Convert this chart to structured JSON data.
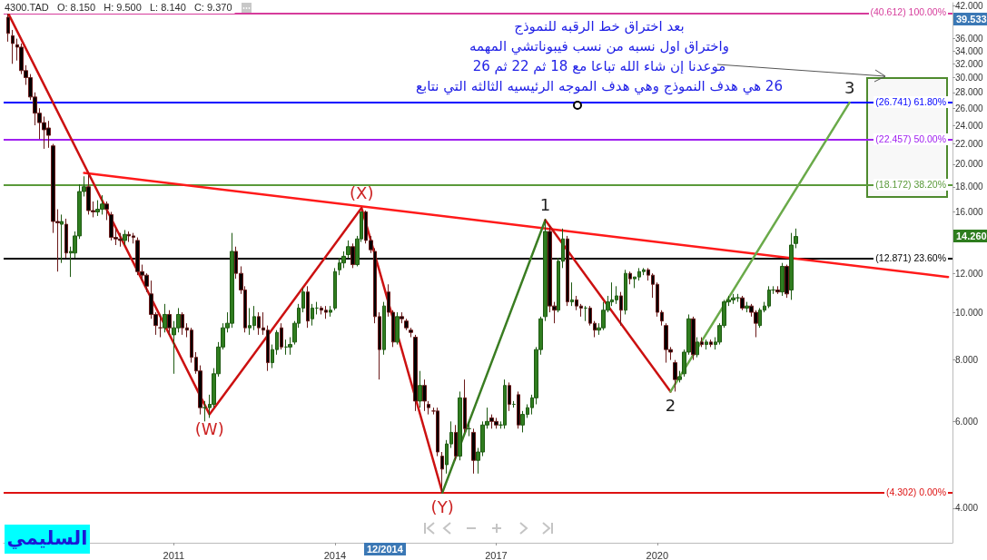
{
  "chart_data": {
    "type": "candlestick",
    "title": "4300.TAD   O: 8.150   H: 9.500   L: 8.140   C: 9.370",
    "x": [
      "2007-12",
      "2008-01",
      "2008-02",
      "2008-03",
      "2008-04",
      "2008-05",
      "2008-06",
      "2008-07",
      "2008-08",
      "2008-09",
      "2008-10",
      "2008-11",
      "2008-12",
      "2009-01",
      "2009-02",
      "2009-03",
      "2009-04",
      "2009-05",
      "2009-06",
      "2009-07",
      "2009-08",
      "2009-09",
      "2009-10",
      "2009-11",
      "2009-12",
      "2010-01",
      "2010-02",
      "2010-03",
      "2010-04",
      "2010-05",
      "2010-06",
      "2010-07",
      "2010-08",
      "2010-09",
      "2010-10",
      "2010-11",
      "2010-12",
      "2011-01",
      "2011-02",
      "2011-03",
      "2011-04",
      "2011-05",
      "2011-06",
      "2011-07",
      "2011-08",
      "2011-09",
      "2011-10",
      "2011-11",
      "2011-12",
      "2012-01",
      "2012-02",
      "2012-03",
      "2012-04",
      "2012-05",
      "2012-06",
      "2012-07",
      "2012-08",
      "2012-09",
      "2012-10",
      "2012-11",
      "2012-12",
      "2013-01",
      "2013-02",
      "2013-03",
      "2013-04",
      "2013-05",
      "2013-06",
      "2013-07",
      "2013-08",
      "2013-09",
      "2013-10",
      "2013-11",
      "2013-12",
      "2014-01",
      "2014-02",
      "2014-03",
      "2014-04",
      "2014-05",
      "2014-06",
      "2014-07",
      "2014-08",
      "2014-09",
      "2014-10",
      "2014-11",
      "2014-12",
      "2015-01",
      "2015-02",
      "2015-03",
      "2015-04",
      "2015-05",
      "2015-06",
      "2015-07",
      "2015-08",
      "2015-09",
      "2015-10",
      "2015-11",
      "2015-12",
      "2016-01",
      "2016-02",
      "2016-03",
      "2016-04",
      "2016-05",
      "2016-06",
      "2016-07",
      "2016-08",
      "2016-09",
      "2016-10",
      "2016-11",
      "2016-12",
      "2017-01",
      "2017-02",
      "2017-03",
      "2017-04",
      "2017-05",
      "2017-06",
      "2017-07",
      "2017-08",
      "2017-09",
      "2017-10",
      "2017-11",
      "2017-12",
      "2018-01",
      "2018-02",
      "2018-03",
      "2018-04",
      "2018-05",
      "2018-06",
      "2018-07",
      "2018-08",
      "2018-09",
      "2018-10",
      "2018-11",
      "2018-12",
      "2019-01",
      "2019-02",
      "2019-03",
      "2019-04",
      "2019-05",
      "2019-06",
      "2019-07",
      "2019-08",
      "2019-09",
      "2019-10",
      "2019-11",
      "2019-12",
      "2020-01",
      "2020-02",
      "2020-03",
      "2020-04",
      "2020-05",
      "2020-06",
      "2020-07",
      "2020-08",
      "2020-09",
      "2020-10",
      "2020-11",
      "2020-12",
      "2021-01",
      "2021-02",
      "2021-03",
      "2021-04",
      "2021-05",
      "2021-06",
      "2021-07",
      "2021-08",
      "2021-09",
      "2021-10",
      "2021-11",
      "2021-12",
      "2022-01",
      "2022-02",
      "2022-03",
      "2022-04",
      "2022-05",
      "2022-06",
      "2022-07",
      "2022-08"
    ],
    "ohlc": [
      [
        39.8,
        40.6,
        35.5,
        36.9
      ],
      [
        36.5,
        37.5,
        32.0,
        35.2
      ],
      [
        35.0,
        36.0,
        32.5,
        34.6
      ],
      [
        34.6,
        35.2,
        30.5,
        31.0
      ],
      [
        31.0,
        31.8,
        29.0,
        30.0
      ],
      [
        30.0,
        30.5,
        27.0,
        27.4
      ],
      [
        27.4,
        28.0,
        24.0,
        25.4
      ],
      [
        25.4,
        26.0,
        22.5,
        24.3
      ],
      [
        24.3,
        25.0,
        21.5,
        23.5
      ],
      [
        23.7,
        24.5,
        21.6,
        22.9
      ],
      [
        21.8,
        22.0,
        14.5,
        15.3
      ],
      [
        15.3,
        16.2,
        12.1,
        15.2
      ],
      [
        15.1,
        15.8,
        12.6,
        15.3
      ],
      [
        15.1,
        15.5,
        12.9,
        13.2
      ],
      [
        13.2,
        13.6,
        11.8,
        13.3
      ],
      [
        13.2,
        14.6,
        12.9,
        14.3
      ],
      [
        14.3,
        18.2,
        14.1,
        17.6
      ],
      [
        17.6,
        18.9,
        17.2,
        18.0
      ],
      [
        18.0,
        19.0,
        15.8,
        16.1
      ],
      [
        16.1,
        16.8,
        15.6,
        16.0
      ],
      [
        16.0,
        16.9,
        15.7,
        16.2
      ],
      [
        16.2,
        17.3,
        15.8,
        16.6
      ],
      [
        16.6,
        16.8,
        15.4,
        16.2
      ],
      [
        15.8,
        16.0,
        14.0,
        14.2
      ],
      [
        14.2,
        14.8,
        13.7,
        14.1
      ],
      [
        14.1,
        14.5,
        13.6,
        14.0
      ],
      [
        14.0,
        14.7,
        13.7,
        14.4
      ],
      [
        14.4,
        14.6,
        13.9,
        14.3
      ],
      [
        14.3,
        14.5,
        13.8,
        14.2
      ],
      [
        14.0,
        14.2,
        11.9,
        12.1
      ],
      [
        12.1,
        12.5,
        11.6,
        11.9
      ],
      [
        11.9,
        12.0,
        11.0,
        11.3
      ],
      [
        10.9,
        11.6,
        9.7,
        9.9
      ],
      [
        9.9,
        10.0,
        9.0,
        9.4
      ],
      [
        9.3,
        9.9,
        8.9,
        9.3
      ],
      [
        9.3,
        10.4,
        9.1,
        9.9
      ],
      [
        9.9,
        10.1,
        9.0,
        9.3
      ],
      [
        9.0,
        9.6,
        7.5,
        9.3
      ],
      [
        9.3,
        10.2,
        9.1,
        9.9
      ],
      [
        9.9,
        10.0,
        9.0,
        9.3
      ],
      [
        9.3,
        9.5,
        8.9,
        9.2
      ],
      [
        9.2,
        9.3,
        7.9,
        8.1
      ],
      [
        8.1,
        8.3,
        7.5,
        7.6
      ],
      [
        7.6,
        7.8,
        6.2,
        6.4
      ],
      [
        6.4,
        6.6,
        6.0,
        6.4
      ],
      [
        6.4,
        6.8,
        6.1,
        6.5
      ],
      [
        6.5,
        7.7,
        6.4,
        7.5
      ],
      [
        7.5,
        8.7,
        7.4,
        8.5
      ],
      [
        8.5,
        9.5,
        8.4,
        9.3
      ],
      [
        9.3,
        10.0,
        9.1,
        9.5
      ],
      [
        9.5,
        14.5,
        9.3,
        13.3
      ],
      [
        13.3,
        13.6,
        11.7,
        12.0
      ],
      [
        12.0,
        12.4,
        10.9,
        11.1
      ],
      [
        11.1,
        11.3,
        9.1,
        9.3
      ],
      [
        9.3,
        10.2,
        9.0,
        9.4
      ],
      [
        9.4,
        10.3,
        9.2,
        9.8
      ],
      [
        9.8,
        10.0,
        9.0,
        9.3
      ],
      [
        9.3,
        10.0,
        9.0,
        9.2
      ],
      [
        9.2,
        9.4,
        7.6,
        7.9
      ],
      [
        7.9,
        8.6,
        7.7,
        8.4
      ],
      [
        8.4,
        9.2,
        8.2,
        9.1
      ],
      [
        9.3,
        9.5,
        8.4,
        8.5
      ],
      [
        8.5,
        8.8,
        8.2,
        8.5
      ],
      [
        8.5,
        8.9,
        8.2,
        8.6
      ],
      [
        8.7,
        9.6,
        8.6,
        9.5
      ],
      [
        9.5,
        10.4,
        9.3,
        10.2
      ],
      [
        10.2,
        11.2,
        10.0,
        11.0
      ],
      [
        11.0,
        11.3,
        9.3,
        9.6
      ],
      [
        9.7,
        10.4,
        9.4,
        10.2
      ],
      [
        10.2,
        10.5,
        9.9,
        10.2
      ],
      [
        10.2,
        10.3,
        9.9,
        10.1
      ],
      [
        10.1,
        10.3,
        9.7,
        10.0
      ],
      [
        10.0,
        10.3,
        9.8,
        10.1
      ],
      [
        10.2,
        12.3,
        10.1,
        12.1
      ],
      [
        12.2,
        12.9,
        11.9,
        12.6
      ],
      [
        12.6,
        13.3,
        12.3,
        13.0
      ],
      [
        13.1,
        14.0,
        12.9,
        13.6
      ],
      [
        13.6,
        13.8,
        12.3,
        12.5
      ],
      [
        12.5,
        14.3,
        12.4,
        14.1
      ],
      [
        14.1,
        16.0,
        13.9,
        16.0
      ],
      [
        16.0,
        16.1,
        13.8,
        14.0
      ],
      [
        14.0,
        14.3,
        13.2,
        13.4
      ],
      [
        13.3,
        13.5,
        9.5,
        9.8
      ],
      [
        9.8,
        10.0,
        7.3,
        8.4
      ],
      [
        8.4,
        10.5,
        8.2,
        10.3
      ],
      [
        11.0,
        11.4,
        9.8,
        10.0
      ],
      [
        10.0,
        10.1,
        8.5,
        8.7
      ],
      [
        8.7,
        10.0,
        8.6,
        9.8
      ],
      [
        9.8,
        10.0,
        9.5,
        9.7
      ],
      [
        9.6,
        9.7,
        9.2,
        9.3
      ],
      [
        9.2,
        9.3,
        8.9,
        9.1
      ],
      [
        8.9,
        9.0,
        6.3,
        6.6
      ],
      [
        6.6,
        7.6,
        6.4,
        7.1
      ],
      [
        7.1,
        7.3,
        6.3,
        6.6
      ],
      [
        6.5,
        6.6,
        6.2,
        6.4
      ],
      [
        6.3,
        6.4,
        6.2,
        6.3
      ],
      [
        6.3,
        6.4,
        5.1,
        5.2
      ],
      [
        5.1,
        5.2,
        4.3,
        4.8
      ],
      [
        4.9,
        5.5,
        4.7,
        5.4
      ],
      [
        5.4,
        6.0,
        5.3,
        5.7
      ],
      [
        5.7,
        5.9,
        5.0,
        5.1
      ],
      [
        5.1,
        6.9,
        5.0,
        6.7
      ],
      [
        6.7,
        7.3,
        5.7,
        5.8
      ],
      [
        5.8,
        6.0,
        5.6,
        5.8
      ],
      [
        5.7,
        5.8,
        4.7,
        5.0
      ],
      [
        5.0,
        5.3,
        4.7,
        5.2
      ],
      [
        5.2,
        6.0,
        5.1,
        5.9
      ],
      [
        5.9,
        6.4,
        5.8,
        6.0
      ],
      [
        6.1,
        6.2,
        5.8,
        6.0
      ],
      [
        6.0,
        6.1,
        5.8,
        5.9
      ],
      [
        5.9,
        6.0,
        5.8,
        5.9
      ],
      [
        5.9,
        7.3,
        5.8,
        7.1
      ],
      [
        7.1,
        7.2,
        6.3,
        6.5
      ],
      [
        6.5,
        6.6,
        6.4,
        6.5
      ],
      [
        6.8,
        6.9,
        5.8,
        5.9
      ],
      [
        5.9,
        6.3,
        5.7,
        6.2
      ],
      [
        6.2,
        6.5,
        6.1,
        6.4
      ],
      [
        6.4,
        6.8,
        6.2,
        6.7
      ],
      [
        6.7,
        8.5,
        6.5,
        8.4
      ],
      [
        8.4,
        9.8,
        8.2,
        9.7
      ],
      [
        9.8,
        15.5,
        9.6,
        14.6
      ],
      [
        14.6,
        15.0,
        10.0,
        10.3
      ],
      [
        10.3,
        10.5,
        9.5,
        10.1
      ],
      [
        10.1,
        12.9,
        10.0,
        12.7
      ],
      [
        12.7,
        14.8,
        12.3,
        14.1
      ],
      [
        14.1,
        14.3,
        10.3,
        10.5
      ],
      [
        10.5,
        11.5,
        10.3,
        10.6
      ],
      [
        10.6,
        10.8,
        10.1,
        10.3
      ],
      [
        10.3,
        10.4,
        9.8,
        10.2
      ],
      [
        10.2,
        10.3,
        9.6,
        10.2
      ],
      [
        10.2,
        10.3,
        9.4,
        9.5
      ],
      [
        9.5,
        9.6,
        8.9,
        9.2
      ],
      [
        9.2,
        9.5,
        9.0,
        9.3
      ],
      [
        9.3,
        10.5,
        9.2,
        10.1
      ],
      [
        10.1,
        10.8,
        10.0,
        10.5
      ],
      [
        10.5,
        11.5,
        10.3,
        10.6
      ],
      [
        10.6,
        11.3,
        10.4,
        10.8
      ],
      [
        10.8,
        11.0,
        9.4,
        10.1
      ],
      [
        10.1,
        12.2,
        9.9,
        12.0
      ],
      [
        12.0,
        12.1,
        11.4,
        11.7
      ],
      [
        11.7,
        11.8,
        11.2,
        11.8
      ],
      [
        11.8,
        12.3,
        11.6,
        12.1
      ],
      [
        12.1,
        12.3,
        11.9,
        12.2
      ],
      [
        12.2,
        12.3,
        11.6,
        11.9
      ],
      [
        11.9,
        12.0,
        10.7,
        11.4
      ],
      [
        11.4,
        11.5,
        9.8,
        10.0
      ],
      [
        10.0,
        10.1,
        9.4,
        9.6
      ],
      [
        9.4,
        9.5,
        7.9,
        8.4
      ],
      [
        8.4,
        8.5,
        8.0,
        8.3
      ],
      [
        7.9,
        8.0,
        6.9,
        7.3
      ],
      [
        7.3,
        7.6,
        7.2,
        7.4
      ],
      [
        7.5,
        8.4,
        7.4,
        8.3
      ],
      [
        8.3,
        9.9,
        8.2,
        9.7
      ],
      [
        9.7,
        9.8,
        8.0,
        8.2
      ],
      [
        8.2,
        8.9,
        8.1,
        8.7
      ],
      [
        8.7,
        8.9,
        8.5,
        8.6
      ],
      [
        8.6,
        8.8,
        8.4,
        8.7
      ],
      [
        8.7,
        8.8,
        8.5,
        8.6
      ],
      [
        8.6,
        8.9,
        8.4,
        8.7
      ],
      [
        8.7,
        9.5,
        8.6,
        9.4
      ],
      [
        9.4,
        10.6,
        9.3,
        10.5
      ],
      [
        10.5,
        10.8,
        10.3,
        10.6
      ],
      [
        10.6,
        10.9,
        10.4,
        10.7
      ],
      [
        10.7,
        10.9,
        10.5,
        10.7
      ],
      [
        10.7,
        10.8,
        10.1,
        10.2
      ],
      [
        10.2,
        10.5,
        10.0,
        10.3
      ],
      [
        10.3,
        10.4,
        9.8,
        10.0
      ],
      [
        10.0,
        10.1,
        8.9,
        9.5
      ],
      [
        9.4,
        10.2,
        9.3,
        10.1
      ],
      [
        10.1,
        10.5,
        10.0,
        10.3
      ],
      [
        10.3,
        11.3,
        10.2,
        11.1
      ],
      [
        11.1,
        11.3,
        10.9,
        11.1
      ],
      [
        11.1,
        11.3,
        10.9,
        11.0
      ],
      [
        11.0,
        12.6,
        10.8,
        12.4
      ],
      [
        12.4,
        12.5,
        10.7,
        10.9
      ],
      [
        11.1,
        14.5,
        10.6,
        13.7
      ],
      [
        13.8,
        14.8,
        13.5,
        14.26
      ]
    ],
    "series": [
      {
        "type": "line",
        "color": "#ff1a1a",
        "x": [
          "2009-05",
          "2025-06"
        ],
        "values": [
          19.2,
          11.8
        ]
      },
      {
        "type": "line",
        "color": "#cc1111",
        "x": [
          "2007-12",
          "2011-09",
          "2014-07",
          "2016-01"
        ],
        "values": [
          40.6,
          6.2,
          16.3,
          4.3
        ]
      },
      {
        "type": "line",
        "color": "#3a7d22",
        "x": [
          "2016-01",
          "2017-12"
        ],
        "values": [
          4.3,
          15.4
        ]
      },
      {
        "type": "line",
        "color": "#cc1111",
        "x": [
          "2017-12",
          "2020-04"
        ],
        "values": [
          15.4,
          6.9
        ]
      },
      {
        "type": "line",
        "color": "#6aaa4a",
        "x": [
          "2020-04",
          "2023-08"
        ],
        "values": [
          6.9,
          26.7
        ]
      }
    ],
    "xlim": [
      "2007-11",
      "2025-07"
    ],
    "xticks": [
      "2011",
      "2014",
      "2017",
      "2020"
    ],
    "ylim": [
      3.4,
      42.6
    ],
    "log": "y",
    "yticks": [
      {
        "value": 4,
        "label": "4.000"
      },
      {
        "value": 6,
        "label": "6.000"
      },
      {
        "value": 8,
        "label": "8.000"
      },
      {
        "value": 10,
        "label": "10.000"
      },
      {
        "value": 12,
        "label": "12.000"
      },
      {
        "value": 16,
        "label": "16.000"
      },
      {
        "value": 18,
        "label": "18.000"
      },
      {
        "value": 20,
        "label": "20.000"
      },
      {
        "value": 22,
        "label": "22.000"
      },
      {
        "value": 24,
        "label": "24.000"
      },
      {
        "value": 26,
        "label": "26.000"
      },
      {
        "value": 28,
        "label": "28.000"
      },
      {
        "value": 30,
        "label": "30.000"
      },
      {
        "value": 32,
        "label": "32.000"
      },
      {
        "value": 34,
        "label": "34.000"
      },
      {
        "value": 36,
        "label": "36.000"
      },
      {
        "value": 42,
        "label": "42.000"
      }
    ],
    "ref_lines": [
      {
        "axis": "y",
        "value": 40.612,
        "label": "(40.612) 100.00%",
        "color": "#d63c9b"
      },
      {
        "axis": "y",
        "value": 26.741,
        "label": "(26.741) 61.80%",
        "color": "#0000ff"
      },
      {
        "axis": "y",
        "value": 22.457,
        "label": "(22.457) 50.00%",
        "color": "#a020f0"
      },
      {
        "axis": "y",
        "value": 18.172,
        "label": "(18.172) 38.20%",
        "color": "#5a9a3a"
      },
      {
        "axis": "y",
        "value": 12.871,
        "label": "(12.871) 23.60%",
        "color": "#000000"
      },
      {
        "axis": "y",
        "value": 4.302,
        "label": "(4.302) 0.00%",
        "color": "#dd1111"
      }
    ],
    "annotations": [
      {
        "text": "(W)",
        "x": "2011-09",
        "y": 6.2
      },
      {
        "text": "(X)",
        "x": "2014-07",
        "y": 16.3
      },
      {
        "text": "(Y)",
        "x": "2016-01",
        "y": 4.3
      },
      {
        "text": "1",
        "x": "2017-12",
        "y": 15.4
      },
      {
        "text": "2",
        "x": "2020-04",
        "y": 6.9
      },
      {
        "text": "3",
        "x": "2023-08",
        "y": 26.7
      },
      "39.533",
      "14.260",
      "12/2014",
      "بعد اختراق خط الرقبه للنموذج",
      "واختراق اول نسبه من نسب فيبوناتشي المهمه",
      "موعدنا إن شاء الله تباعا مع 18 ثم 22 ثم 26",
      "26 هي هدف النموذج وهي هدف الموجه الرئيسيه الثالثه التي نتابع",
      "السليمي"
    ]
  }
}
